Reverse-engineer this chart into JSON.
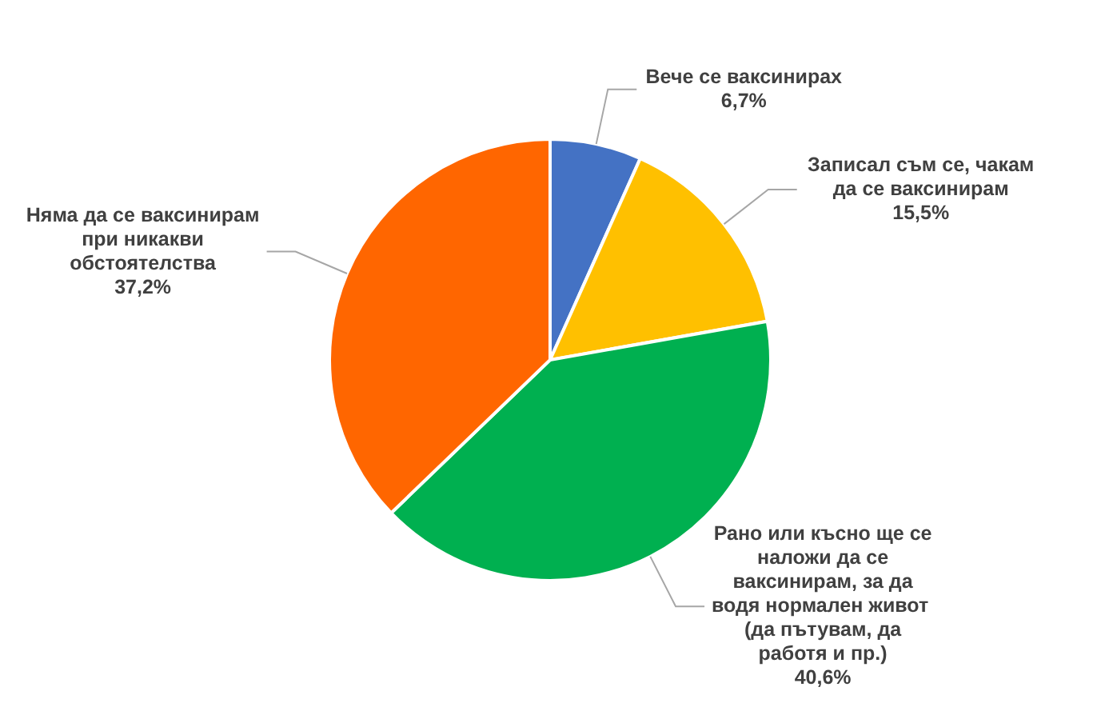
{
  "chart_data": {
    "type": "pie",
    "categories": [
      "Вече се ваксинирах",
      "Записал съм се, чакам да се ваксинирам",
      "Рано или късно ще се наложи да се ваксинирам, за да водя нормален живот  (да пътувам, да работя и пр.)",
      "Няма да се ваксинирам при никакви обстоятелства"
    ],
    "values": [
      6.7,
      15.5,
      40.6,
      37.2
    ],
    "colors": [
      "#4472c4",
      "#ffc000",
      "#00b050",
      "#ff6600"
    ],
    "value_labels": [
      "6,7%",
      "15,5%",
      "40,6%",
      "37,2%"
    ],
    "legend": false
  }
}
